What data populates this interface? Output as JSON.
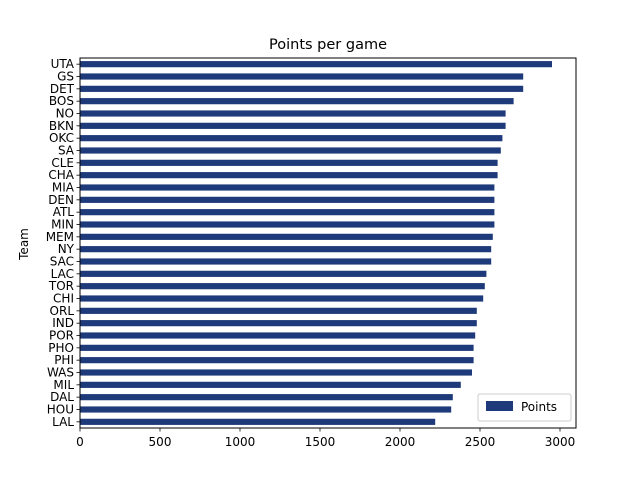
{
  "chart_data": {
    "type": "bar",
    "orientation": "horizontal",
    "title": "Points per game",
    "xlabel": "",
    "ylabel": "Team",
    "xlim": [
      0,
      3100
    ],
    "x_ticks": [
      0,
      500,
      1000,
      1500,
      2000,
      2500,
      3000
    ],
    "categories": [
      "UTA",
      "GS",
      "DET",
      "BOS",
      "NO",
      "BKN",
      "OKC",
      "SA",
      "CLE",
      "CHA",
      "MIA",
      "DEN",
      "ATL",
      "MIN",
      "MEM",
      "NY",
      "SAC",
      "LAC",
      "TOR",
      "CHI",
      "ORL",
      "IND",
      "POR",
      "PHO",
      "PHI",
      "WAS",
      "MIL",
      "DAL",
      "HOU",
      "LAL"
    ],
    "series": [
      {
        "name": "Points",
        "color": "#1f3a7a",
        "values": [
          2950,
          2770,
          2770,
          2710,
          2660,
          2660,
          2640,
          2630,
          2610,
          2610,
          2590,
          2590,
          2590,
          2590,
          2580,
          2570,
          2570,
          2540,
          2530,
          2520,
          2480,
          2480,
          2470,
          2460,
          2460,
          2450,
          2380,
          2330,
          2320,
          2220
        ]
      }
    ],
    "grid": false,
    "legend": {
      "position": "bottom-right",
      "entries": [
        "Points"
      ]
    }
  }
}
